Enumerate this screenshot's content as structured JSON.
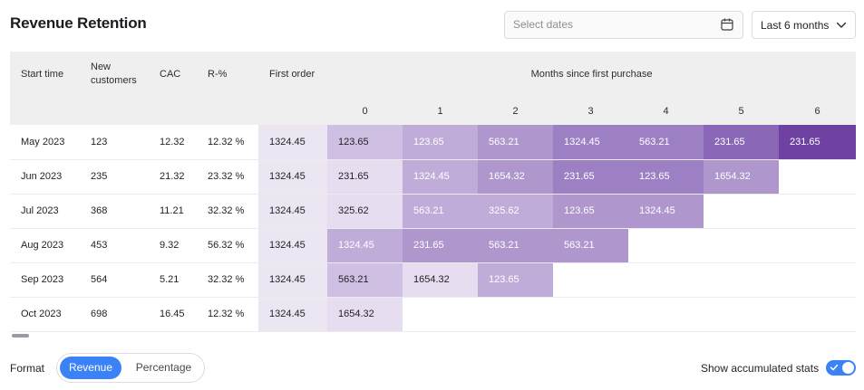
{
  "header": {
    "title": "Revenue Retention",
    "date_placeholder": "Select dates",
    "range_label": "Last 6 months"
  },
  "table": {
    "columns": [
      "Start time",
      "New\ncustomers",
      "CAC",
      "R-%",
      "First order"
    ],
    "months_header": "Months since first purchase",
    "month_numbers": [
      "0",
      "1",
      "2",
      "3",
      "4",
      "5",
      "6"
    ],
    "rows": [
      {
        "start": "May 2023",
        "new": "123",
        "cac": "12.32",
        "r": "12.32 %",
        "first": "1324.45",
        "months": [
          "123.65",
          "123.65",
          "563.21",
          "1324.45",
          "563.21",
          "231.65",
          "231.65"
        ]
      },
      {
        "start": "Jun 2023",
        "new": "235",
        "cac": "21.32",
        "r": "23.32 %",
        "first": "1324.45",
        "months": [
          "231.65",
          "1324.45",
          "1654.32",
          "231.65",
          "123.65",
          "1654.32"
        ]
      },
      {
        "start": "Jul 2023",
        "new": "368",
        "cac": "11.21",
        "r": "32.32 %",
        "first": "1324.45",
        "months": [
          "325.62",
          "563.21",
          "325.62",
          "123.65",
          "1324.45"
        ]
      },
      {
        "start": "Aug 2023",
        "new": "453",
        "cac": "9.32",
        "r": "56.32 %",
        "first": "1324.45",
        "months": [
          "1324.45",
          "231.65",
          "563.21",
          "563.21"
        ]
      },
      {
        "start": "Sep 2023",
        "new": "564",
        "cac": "5.21",
        "r": "32.32 %",
        "first": "1324.45",
        "months": [
          "563.21",
          "1654.32",
          "123.65"
        ]
      },
      {
        "start": "Oct 2023",
        "new": "698",
        "cac": "16.45",
        "r": "12.32 %",
        "first": "1324.45",
        "months": [
          "1654.32"
        ]
      }
    ],
    "shades": {
      "first": "#ece6f3",
      "levels": [
        "#e6ddf0",
        "#dcd0ea",
        "#cfbfe2",
        "#c0acd9",
        "#af97ce",
        "#9d80c3",
        "#8a67b7",
        "#6f41a3"
      ],
      "light_text": "#ffffff",
      "dark_text": "#1f2024"
    },
    "cell_levels": [
      [
        2,
        3,
        4,
        5,
        5,
        6,
        7
      ],
      [
        0,
        3,
        4,
        5,
        5,
        4
      ],
      [
        0,
        3,
        3,
        4,
        4
      ],
      [
        3,
        4,
        4,
        4
      ],
      [
        2,
        0,
        3
      ],
      [
        0
      ]
    ]
  },
  "footer": {
    "format_label": "Format",
    "format_options": [
      "Revenue",
      "Percentage"
    ],
    "format_selected": "Revenue",
    "accumulated_label": "Show accumulated stats",
    "accumulated_on": true
  },
  "colors": {
    "accent": "#3b82f6"
  },
  "icons": {
    "date": "calendar-icon",
    "range": "chevron-down-icon",
    "toggle": "check-icon"
  }
}
